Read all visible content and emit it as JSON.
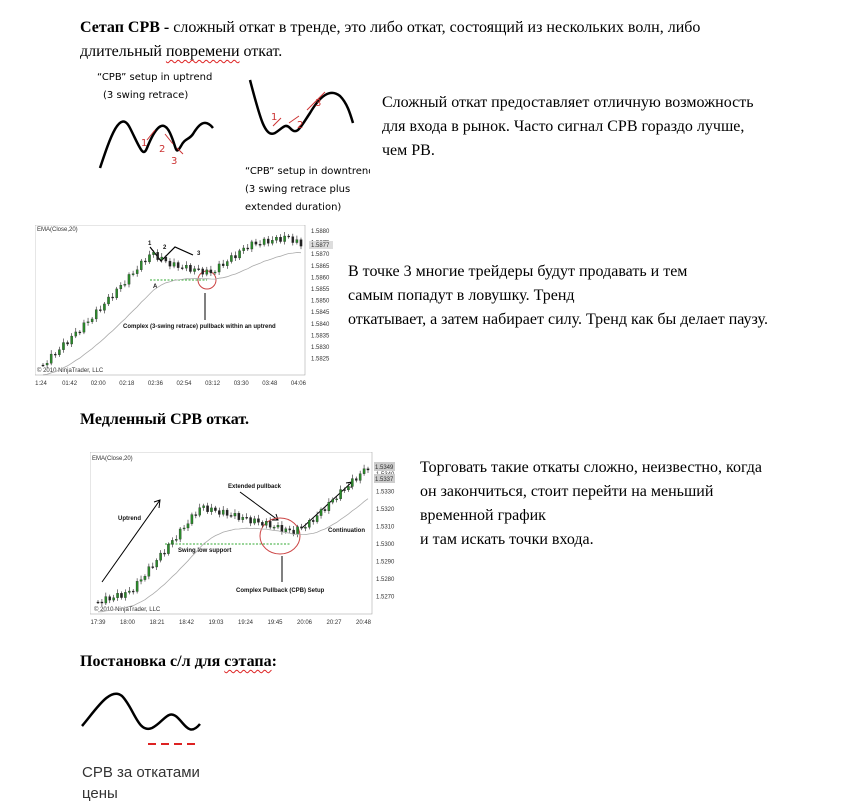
{
  "intro": {
    "term": "Сетап CPB -",
    "text1": " сложный откат в тренде, это либо откат, состоящий из нескольких волн, либо",
    "text2": "длительный ",
    "misspelled": "повремени",
    "text3": " откат."
  },
  "figure1": {
    "uptrend_label": [
      "“CPB” setup in uptrend",
      "(3 swing retrace)"
    ],
    "uptrend_numbers": [
      "1",
      "2",
      "3"
    ],
    "downtrend_label": [
      "“CPB” setup in downtrend",
      "(3 swing retrace plus",
      "extended duration)"
    ],
    "downtrend_numbers": [
      "1",
      "2",
      "3"
    ]
  },
  "paragraph1": [
    "Сложный откат предоставляет отличную возможность",
    "для входа в рынок. Часто сигнал CPB гораздо лучше,",
    "чем PB."
  ],
  "chart1": {
    "indicator": "EMA(Close,20)",
    "copyright": "© 2010 NinjaTrader, LLC",
    "annotation": "Complex (3-swing retrace) pullback within an uptrend",
    "point_label": "A",
    "swing_numbers": [
      "1",
      "2",
      "3"
    ],
    "price_labels": [
      "1.5880",
      "1.5875",
      "1.5870",
      "1.5865",
      "1.5860",
      "1.5855",
      "1.5850",
      "1.5845",
      "1.5840",
      "1.5835",
      "1.5830",
      "1.5825"
    ],
    "time_labels": [
      "1:24",
      "01:42",
      "02:00",
      "02:18",
      "02:36",
      "02:54",
      "03:12",
      "03:30",
      "03:48",
      "04:06"
    ],
    "price_boxes": [
      "1.5877"
    ]
  },
  "paragraph2": [
    " В точке 3 многие трейдеры будут продавать и тем",
    "самым попадут в ловушку. Тренд",
    "откатывает, а затем набирает силу. Тренд как бы делает паузу."
  ],
  "heading2": "Медленный CPB откат.",
  "chart2": {
    "indicator": "EMA(Close,20)",
    "copyright": "© 2010 NinjaTrader, LLC",
    "annotations": [
      "Uptrend",
      "Extended pullback",
      "Swing low support",
      "Complex Pullback (CPB) Setup",
      "Continuation"
    ],
    "price_labels": [
      "1.5340",
      "1.5330",
      "1.5320",
      "1.5310",
      "1.5300",
      "1.5290",
      "1.5280",
      "1.5270"
    ],
    "time_labels": [
      "17:39",
      "18:00",
      "18:21",
      "18:42",
      "19:03",
      "19:24",
      "19:45",
      "20:06",
      "20:27",
      "20:48"
    ],
    "price_boxes": [
      "1.5349",
      "1.5337"
    ]
  },
  "paragraph3": [
    "Торговать такие откаты сложно,  неизвестно, когда",
    "он закончиться, стоит перейти на меньший",
    "временной график",
    "и там искать точки входа."
  ],
  "heading3": {
    "text": "Постановка с/л для ",
    "misspelled": "сэтапа",
    "end": ":"
  },
  "caption": [
    "CPB за откатами",
    "цены"
  ]
}
